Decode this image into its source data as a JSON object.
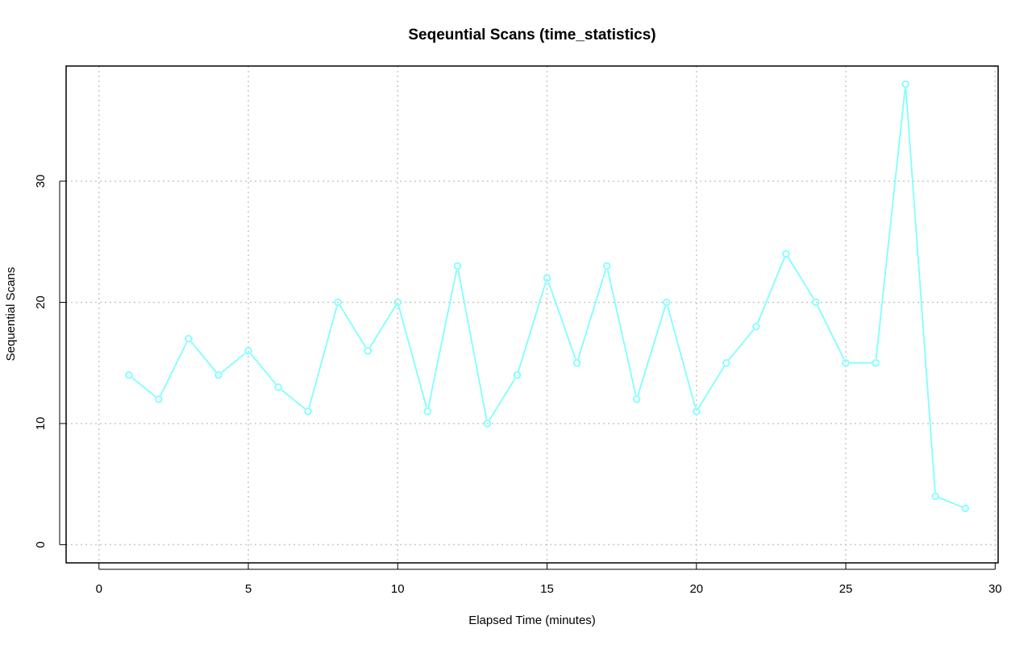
{
  "chart_data": {
    "type": "line",
    "title": "Seqeuntial Scans (time_statistics)",
    "xlabel": "Elapsed Time (minutes)",
    "ylabel": "Sequential Scans",
    "xlim": [
      -1.1,
      30.1
    ],
    "ylim": [
      -1.5,
      39.5
    ],
    "x_ticks": [
      0,
      5,
      10,
      15,
      20,
      25,
      30
    ],
    "y_ticks": [
      0,
      10,
      20,
      30
    ],
    "grid": true,
    "series": [
      {
        "color": "#7FFFFF",
        "marker": "open-circle",
        "x": [
          1,
          2,
          3,
          4,
          5,
          6,
          7,
          8,
          9,
          10,
          11,
          12,
          13,
          14,
          15,
          16,
          17,
          18,
          19,
          20,
          21,
          22,
          23,
          24,
          25,
          26,
          27,
          28,
          29
        ],
        "y": [
          14,
          12,
          17,
          14,
          16,
          13,
          11,
          20,
          16,
          20,
          11,
          23,
          10,
          14,
          22,
          15,
          23,
          12,
          20,
          11,
          15,
          18,
          24,
          20,
          15,
          15,
          38,
          4,
          3
        ]
      }
    ]
  }
}
